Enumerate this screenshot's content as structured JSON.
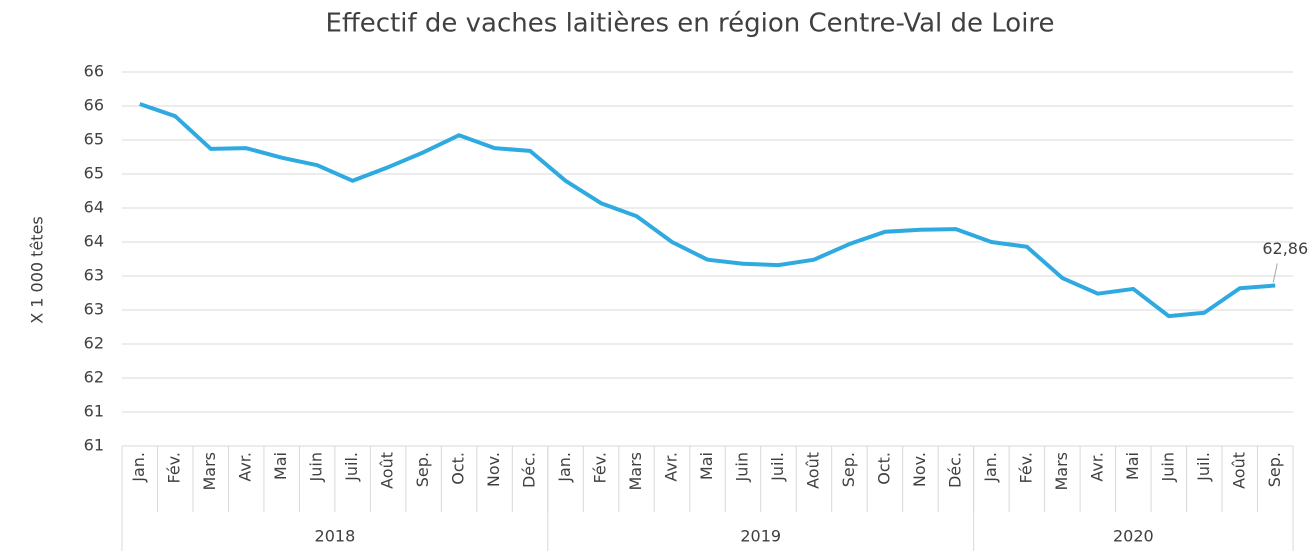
{
  "chart_data": {
    "type": "line",
    "title": "Effectif de vaches laitières en région Centre-Val de Loire",
    "y_label": "X 1 000 têtes",
    "categories": [
      "Jan.",
      "Fév.",
      "Mars",
      "Avr.",
      "Mai",
      "Juin",
      "Juil.",
      "Août",
      "Sep.",
      "Oct.",
      "Nov.",
      "Déc.",
      "Jan.",
      "Fév.",
      "Mars",
      "Avr.",
      "Mai",
      "Juin",
      "Juil.",
      "Août",
      "Sep.",
      "Oct.",
      "Nov.",
      "Déc.",
      "Jan.",
      "Fév.",
      "Mars",
      "Avr.",
      "Mai",
      "Juin",
      "Juil.",
      "Août",
      "Sep."
    ],
    "category_groups": [
      {
        "label": "2018",
        "span": 12
      },
      {
        "label": "2019",
        "span": 12
      },
      {
        "label": "2020",
        "span": 9
      }
    ],
    "series": [
      {
        "name": "Effectif",
        "color": "#2eaae1",
        "values": [
          65.53,
          65.35,
          64.87,
          64.88,
          64.74,
          64.63,
          64.4,
          64.6,
          64.82,
          65.07,
          64.88,
          64.84,
          64.4,
          64.07,
          63.88,
          63.5,
          63.24,
          63.18,
          63.16,
          63.24,
          63.47,
          63.65,
          63.68,
          63.69,
          63.5,
          63.43,
          62.97,
          62.74,
          62.81,
          62.41,
          62.46,
          62.82,
          62.86
        ],
        "value_labels": [
          null,
          null,
          null,
          null,
          null,
          null,
          null,
          null,
          null,
          null,
          null,
          null,
          null,
          null,
          null,
          null,
          null,
          null,
          null,
          null,
          null,
          null,
          null,
          null,
          null,
          null,
          null,
          null,
          null,
          null,
          null,
          null,
          "62,86"
        ]
      }
    ],
    "ylim": [
      60.5,
      66
    ],
    "yticks": [
      {
        "value": 60.5,
        "label": "61"
      },
      {
        "value": 61,
        "label": "61"
      },
      {
        "value": 61.5,
        "label": "62"
      },
      {
        "value": 62,
        "label": "62"
      },
      {
        "value": 62.5,
        "label": "63"
      },
      {
        "value": 63,
        "label": "63"
      },
      {
        "value": 63.5,
        "label": "64"
      },
      {
        "value": 64,
        "label": "64"
      },
      {
        "value": 64.5,
        "label": "65"
      },
      {
        "value": 65,
        "label": "65"
      },
      {
        "value": 65.5,
        "label": "66"
      },
      {
        "value": 66,
        "label": "66"
      }
    ],
    "grid": true
  }
}
